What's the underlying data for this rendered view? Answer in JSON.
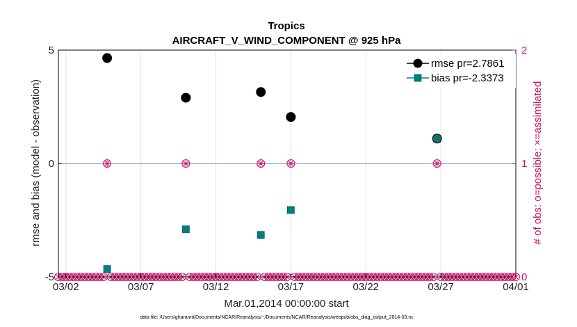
{
  "chart_data": {
    "type": "scatter",
    "title": "Tropics",
    "subtitle": "AIRCRAFT_V_WIND_COMPONENT @ 925 hPa",
    "xlabel": "Mar.01,2014 00:00:00 start",
    "ylabel": "rmse and bias (model - observation)",
    "ylabel_right": "# of obs: o=possible; ×=assimilated",
    "footnote": "data file: /Users/gharamti/Documents/NCAR/Reanalysis/~/Documents/NCAR/Reanalysis/webpub/obs_diag_output_2014-03.nc",
    "xlim": [
      1.5,
      32.0
    ],
    "ylim": [
      -5,
      5
    ],
    "ylim_right": [
      0,
      2
    ],
    "x_ticks": [
      2,
      7,
      12,
      17,
      22,
      27,
      32
    ],
    "x_tick_labels": [
      "03/02",
      "03/07",
      "03/12",
      "03/17",
      "03/22",
      "03/27",
      "04/01"
    ],
    "y_ticks": [
      -5,
      0,
      5
    ],
    "y_tick_labels": [
      "-5",
      "0",
      "5"
    ],
    "y_ticks_right": [
      0,
      1,
      2
    ],
    "y_tick_labels_right": [
      "0",
      "1",
      "2"
    ],
    "grid": true,
    "legend_position": "top-right",
    "series": [
      {
        "name": "rmse",
        "legend_label": "rmse pr=2.7861",
        "color": "#000000",
        "marker": "circle",
        "x": [
          4.75,
          10.0,
          15.0,
          17.0,
          26.75
        ],
        "values": [
          4.65,
          2.9,
          3.15,
          2.05,
          1.1
        ]
      },
      {
        "name": "bias",
        "legend_label": "bias pr=-2.3373",
        "color": "#008080",
        "marker": "square",
        "x": [
          4.75,
          10.0,
          15.0,
          17.0,
          26.75
        ],
        "values": [
          -4.65,
          -2.9,
          -3.15,
          -2.05,
          1.1
        ]
      }
    ],
    "obs_counts": {
      "color": "#cc1166",
      "x_step": 0.25,
      "x_start": 1.5,
      "x_end": 32.0,
      "nonzero_x": [
        4.75,
        10.0,
        15.0,
        17.0,
        26.75
      ],
      "nonzero_possible": 1,
      "nonzero_assimilated": 1
    }
  }
}
